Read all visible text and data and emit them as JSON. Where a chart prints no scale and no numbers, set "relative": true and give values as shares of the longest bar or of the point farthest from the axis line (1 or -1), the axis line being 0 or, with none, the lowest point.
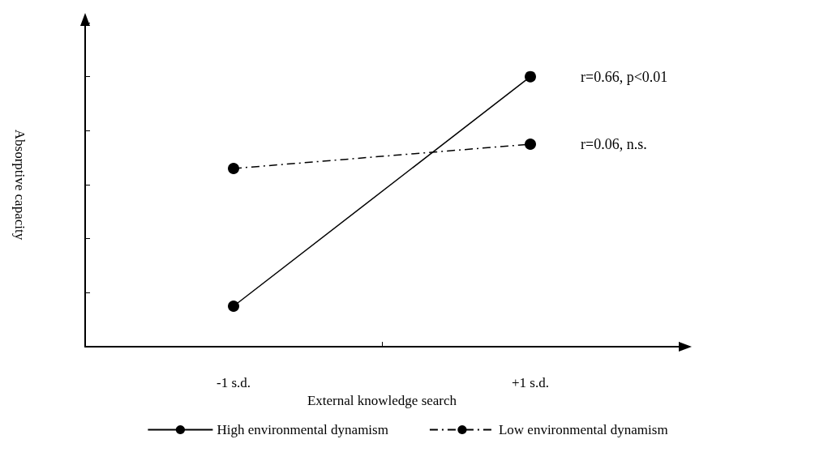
{
  "chart_data": {
    "type": "line",
    "relative": true,
    "xlabel": "External knowledge search",
    "ylabel": "Absorptive capacity",
    "categories": [
      "-1 s.d.",
      "+1 s.d."
    ],
    "series": [
      {
        "name": "High environmental dynamism",
        "color": "#000000",
        "values": [
          0.15,
          1
        ],
        "line_style": "solid"
      },
      {
        "name": "Low environmental dynamism",
        "color": "#000000",
        "values": [
          0.66,
          0.75
        ],
        "line_style": "dashed"
      }
    ],
    "annotations": [
      "r=0.66, p<0.01",
      "r=0.06, n.s."
    ],
    "marker": "circle",
    "legend": "bottom",
    "grid": false
  }
}
